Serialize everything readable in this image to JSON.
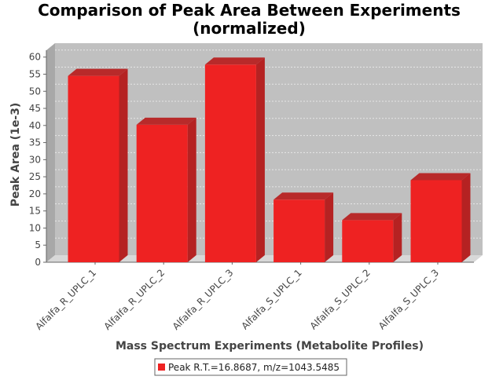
{
  "chart_data": {
    "type": "bar",
    "title": "Comparison of Peak Area Between Experiments",
    "subtitle": "(normalized)",
    "xlabel": "Mass Spectrum Experiments (Metabolite Profiles)",
    "ylabel": "Peak Area (1e-3)",
    "categories": [
      "Alfalfa_R_UPLC_1",
      "Alfalfa_R_UPLC_2",
      "Alfalfa_R_UPLC_3",
      "Alfalfa_S_UPLC_1",
      "Alfalfa_S_UPLC_2",
      "Alfalfa_S_UPLC_3"
    ],
    "series": [
      {
        "name": "Peak R.T.=16.8687, m/z=1043.5485",
        "values": [
          54.5,
          40.2,
          57.8,
          18.3,
          12.3,
          24.0
        ],
        "color": "#ee2222"
      }
    ],
    "ylim": [
      0,
      62
    ],
    "yticks": [
      "0",
      "5",
      "10",
      "15",
      "20",
      "25",
      "30",
      "35",
      "40",
      "45",
      "50",
      "55",
      "60"
    ],
    "grid": true,
    "legend_position": "bottom-center",
    "colors": {
      "plot_background": "#c0c0c0",
      "plot_wall": "#a8a8a8",
      "grid": "#e6e6e6",
      "bar_front": "#ee2222",
      "bar_top": "#b82a2a",
      "bar_side": "#b52222"
    }
  }
}
